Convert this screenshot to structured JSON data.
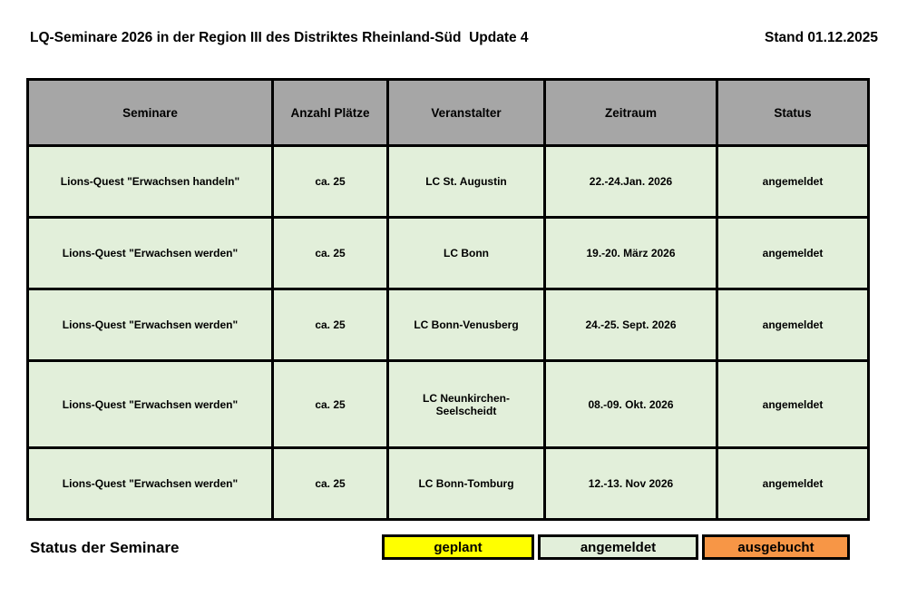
{
  "page": {
    "title": "LQ-Seminare 2026 in der Region III des Distriktes Rheinland-Süd  Update 4",
    "stand": "Stand 01.12.2025"
  },
  "colors": {
    "header_bg": "#a6a6a6",
    "row_bg": "#e2efda",
    "geplant": "#ffff00",
    "angemeldet": "#e2efda",
    "ausgebucht": "#f79646"
  },
  "table": {
    "headers": [
      "Seminare",
      "Anzahl Plätze",
      "Veranstalter",
      "Zeitraum",
      "Status"
    ],
    "rows": [
      [
        "Lions-Quest \"Erwachsen handeln\"",
        "ca. 25",
        "LC St. Augustin",
        "22.-24.Jan. 2026",
        "angemeldet"
      ],
      [
        "Lions-Quest \"Erwachsen werden\"",
        "ca. 25",
        "LC Bonn",
        "19.-20. März 2026",
        "angemeldet"
      ],
      [
        "Lions-Quest \"Erwachsen werden\"",
        "ca. 25",
        "LC Bonn-Venusberg",
        "24.-25. Sept. 2026",
        "angemeldet"
      ],
      [
        "Lions-Quest \"Erwachsen werden\"",
        "ca. 25",
        "LC Neunkirchen-Seelscheidt",
        "08.-09. Okt. 2026",
        "angemeldet"
      ],
      [
        "Lions-Quest \"Erwachsen werden\"",
        "ca. 25",
        "LC Bonn-Tomburg",
        "12.-13. Nov 2026",
        "angemeldet"
      ]
    ]
  },
  "legend": {
    "label": "Status der Seminare",
    "items": [
      {
        "label": "geplant",
        "color": "#ffff00"
      },
      {
        "label": "angemeldet",
        "color": "#e2efda"
      },
      {
        "label": "ausgebucht",
        "color": "#f79646"
      }
    ]
  }
}
